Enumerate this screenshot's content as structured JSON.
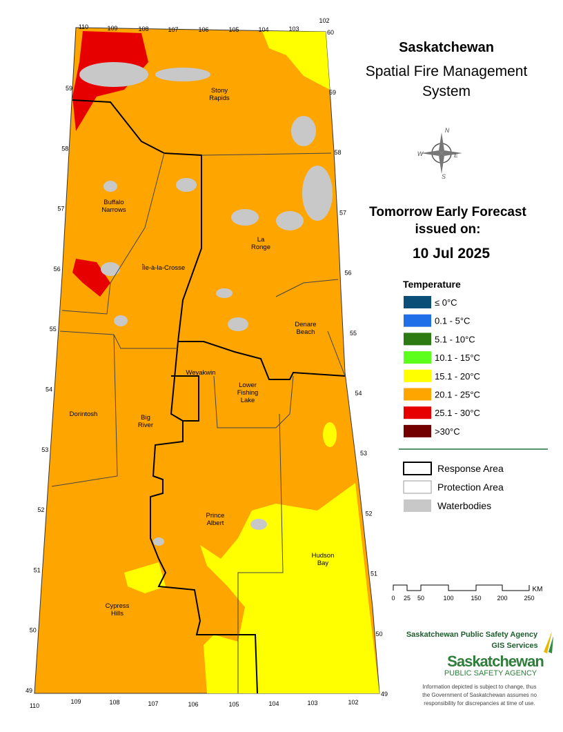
{
  "header": {
    "title_lines": [
      "Saskatchewan",
      "Spatial Fire Management",
      "System"
    ]
  },
  "forecast": {
    "lines": [
      "Tomorrow Early Forecast",
      "issued on:"
    ],
    "date": "10 Jul 2025"
  },
  "compass": {
    "n": "N",
    "e": "E",
    "s": "S",
    "w": "W"
  },
  "legend": {
    "title": "Temperature",
    "items": [
      {
        "label": "≤ 0°C",
        "color": "#0b4e78"
      },
      {
        "label": "0.1 - 5°C",
        "color": "#1f6fe8"
      },
      {
        "label": "5.1 - 10°C",
        "color": "#2b7a12"
      },
      {
        "label": "10.1 - 15°C",
        "color": "#5cff1c"
      },
      {
        "label": "15.1 - 20°C",
        "color": "#ffff00"
      },
      {
        "label": "20.1 - 25°C",
        "color": "#ffa500"
      },
      {
        "label": "25.1 - 30°C",
        "color": "#e60000"
      },
      {
        "label": ">30°C",
        "color": "#730000"
      }
    ]
  },
  "boundary_legend": {
    "items": [
      "Response Area",
      "Protection Area",
      "Waterbodies"
    ]
  },
  "scale": {
    "ticks": [
      0,
      25,
      50,
      100,
      150,
      200,
      250
    ],
    "unit": "KM"
  },
  "map": {
    "places": [
      {
        "lines": [
          "Stony",
          "Rapids"
        ]
      },
      {
        "lines": [
          "Buffalo",
          "Narrows"
        ]
      },
      {
        "lines": [
          "La",
          "Ronge"
        ]
      },
      {
        "lines": [
          "Île-à-la-Crosse"
        ]
      },
      {
        "lines": [
          "Denare",
          "Beach"
        ]
      },
      {
        "lines": [
          "Weyakwin"
        ]
      },
      {
        "lines": [
          "Lower",
          "Fishing",
          "Lake"
        ]
      },
      {
        "lines": [
          "Dorintosh"
        ]
      },
      {
        "lines": [
          "Big",
          "River"
        ]
      },
      {
        "lines": [
          "Prince",
          "Albert"
        ]
      },
      {
        "lines": [
          "Hudson",
          "Bay"
        ]
      },
      {
        "lines": [
          "Cypress",
          "Hills"
        ]
      }
    ],
    "lat_left": [
      59,
      58,
      57,
      56,
      55,
      54,
      53,
      52,
      51,
      50,
      49
    ],
    "lat_right": [
      59,
      58,
      57,
      56,
      55,
      54,
      53,
      52,
      51,
      50,
      49
    ],
    "top_lat": 60,
    "lon_top": [
      110,
      109,
      108,
      107,
      106,
      105,
      104,
      103,
      102
    ],
    "lon_bottom": [
      110,
      109,
      108,
      107,
      106,
      105,
      104,
      103,
      102
    ]
  },
  "agency": {
    "name": "Saskatchewan Public Safety Agency",
    "unit": "GIS  Services",
    "logo_main": "Saskatchewan",
    "logo_sub": "PUBLIC SAFETY AGENCY",
    "disclaimer": [
      "Information depicted is subject to change, thus",
      "the Government of Saskatchewan assumes no",
      "responsibility for discrepancies at time of use."
    ]
  }
}
